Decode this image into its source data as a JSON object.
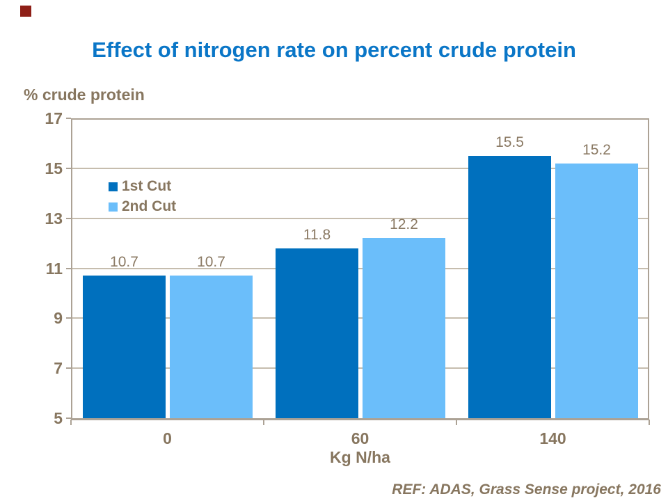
{
  "chart_data": {
    "type": "bar",
    "title": "Effect of nitrogen rate on percent crude protein",
    "y_axis_title": "% crude protein",
    "x_axis_title": "Kg N/ha",
    "reference": "REF: ADAS, Grass Sense project, 2016",
    "categories": [
      "0",
      "60",
      "140"
    ],
    "series": [
      {
        "name": "1st Cut",
        "color": "#0070BE",
        "values": [
          10.7,
          11.8,
          15.5
        ]
      },
      {
        "name": "2nd Cut",
        "color": "#6BBEFA",
        "values": [
          10.7,
          12.2,
          15.2
        ]
      }
    ],
    "data_labels": [
      "10.7",
      "10.7",
      "11.8",
      "12.2",
      "15.5",
      "15.2"
    ],
    "ylim": [
      5,
      17
    ],
    "yticks": [
      17,
      15,
      13,
      11,
      9,
      7,
      5
    ],
    "grid": true,
    "legend_position": "inside-top-left",
    "legend_entries": [
      "1st Cut",
      "2nd Cut"
    ]
  },
  "colors": {
    "title": "#0A76C7",
    "text_brown": "#87765F",
    "label_brown": "#8A7963",
    "gridline": "#C6BDAE",
    "axis": "#ACA295",
    "corner_square": "#8E1F17",
    "series1": "#0070BE",
    "series2": "#6BBEFA"
  }
}
